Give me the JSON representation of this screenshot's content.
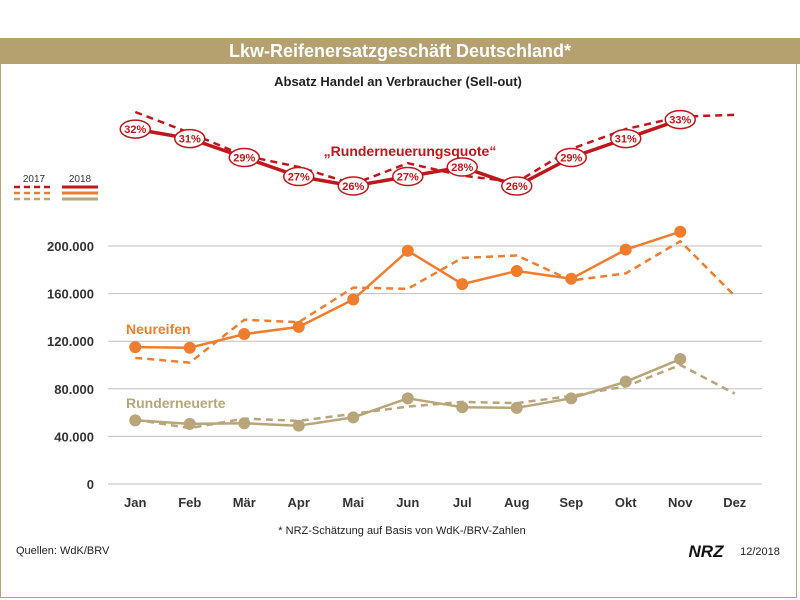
{
  "title": "Lkw-Reifenersatzgeschäft Deutschland*",
  "subtitle": "Absatz Handel an Verbraucher (Sell-out)",
  "footnote": "* NRZ-Schätzung auf Basis von WdK-/BRV-Zahlen",
  "source": "Quellen: WdK/BRV",
  "logo_text": "NRZ",
  "date": "12/2018",
  "legend": {
    "year_2017": "2017",
    "year_2018": "2018"
  },
  "colors": {
    "quote": "#c0171c",
    "neu": "#ef7d2d",
    "rund": "#b8a57a",
    "title_bg": "#b5a070",
    "grid": "#bfbfbf"
  },
  "chart_data": {
    "type": "line",
    "categories": [
      "Jan",
      "Feb",
      "Mär",
      "Apr",
      "Mai",
      "Jun",
      "Jul",
      "Aug",
      "Sep",
      "Okt",
      "Nov",
      "Dez"
    ],
    "ylim": [
      0,
      200000
    ],
    "yticks": [
      0,
      40000,
      80000,
      120000,
      160000,
      200000
    ],
    "ytick_labels": [
      "0",
      "40.000",
      "80.000",
      "120.000",
      "160.000",
      "200.000"
    ],
    "series": [
      {
        "name": "Neureifen",
        "year": "2018",
        "values": [
          115000,
          114500,
          126000,
          132000,
          155000,
          196000,
          168000,
          179000,
          172500,
          197000,
          212000,
          null
        ]
      },
      {
        "name": "Neureifen",
        "year": "2017",
        "values": [
          106000,
          102000,
          138000,
          136000,
          165000,
          164000,
          190000,
          192000,
          171000,
          177000,
          204000,
          158000
        ]
      },
      {
        "name": "Runderneuerte",
        "year": "2018",
        "values": [
          53500,
          50500,
          51000,
          49000,
          56000,
          72000,
          64500,
          64000,
          72000,
          86000,
          105000,
          null
        ]
      },
      {
        "name": "Runderneuerte",
        "year": "2017",
        "values": [
          54000,
          47000,
          55000,
          53000,
          59000,
          65000,
          69000,
          68000,
          74000,
          82000,
          100000,
          76000
        ]
      }
    ],
    "quote": {
      "label": "„Runderneuerungsquote“",
      "values_2018": [
        32,
        31,
        29,
        27,
        26,
        27,
        28,
        26,
        29,
        31,
        33,
        null
      ],
      "labels_2018": [
        "32%",
        "31%",
        "29%",
        "27%",
        "26%",
        "27%",
        "28%",
        "26%",
        "29%",
        "31%",
        "33%"
      ],
      "values_2017": [
        33.8,
        31.6,
        29.2,
        28,
        26.2,
        28.4,
        27.1,
        26.4,
        29.9,
        32,
        33.3,
        33.5
      ]
    },
    "series_labels": {
      "neu": "Neureifen",
      "rund": "Runderneuerte"
    }
  }
}
